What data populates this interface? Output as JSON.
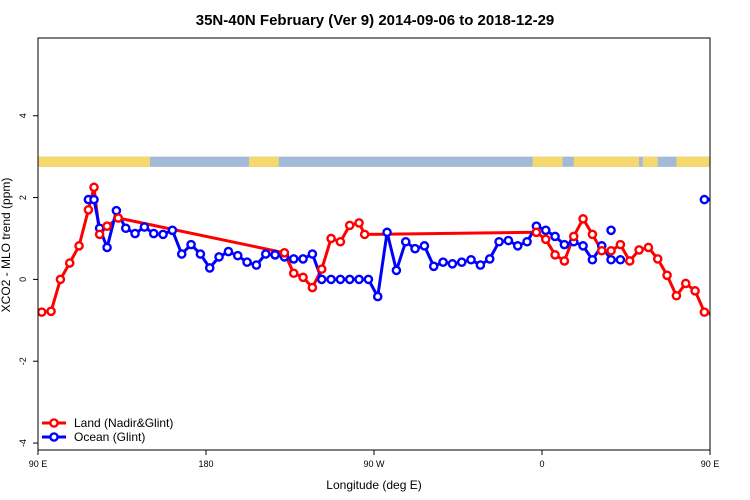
{
  "chart_data": {
    "type": "line",
    "title": "35N-40N February (Ver 9)   2014-09-06 to 2018-12-29",
    "xlabel": "Longitude (deg E)",
    "ylabel": "XCO2 - MLO trend (ppm)",
    "xlim": [
      90,
      450
    ],
    "ylim": [
      -4,
      6
    ],
    "x_ticks": [
      {
        "value": 90,
        "label": "90 E"
      },
      {
        "value": 180,
        "label": "180"
      },
      {
        "value": 270,
        "label": "90 W"
      },
      {
        "value": 360,
        "label": "0"
      },
      {
        "value": 450,
        "label": "90 E"
      },
      {
        "value": 540,
        "label": "180"
      }
    ],
    "y_ticks": [
      {
        "value": -4,
        "label": "-4"
      },
      {
        "value": -2,
        "label": "-2"
      },
      {
        "value": 0,
        "label": "0"
      },
      {
        "value": 2,
        "label": "2"
      },
      {
        "value": 4,
        "label": "4"
      }
    ],
    "series": [
      {
        "name": "Land (Nadir&Glint)",
        "color": "#ff0000",
        "x": [
          92,
          97,
          102,
          107,
          112,
          117,
          120,
          123,
          127,
          133,
          222,
          227,
          232,
          237,
          242,
          247,
          252,
          257,
          262,
          265,
          357,
          362,
          367,
          372,
          377,
          382,
          387,
          392,
          397,
          402,
          407,
          412,
          417,
          422,
          427,
          432,
          437,
          442,
          447,
          452,
          457,
          462,
          467,
          472,
          477,
          482,
          487,
          492
        ],
        "y": [
          -0.8,
          -0.78,
          0.0,
          0.4,
          0.82,
          1.7,
          2.25,
          1.1,
          1.3,
          1.5,
          0.65,
          0.15,
          0.05,
          -0.2,
          0.25,
          1.0,
          0.92,
          1.32,
          1.38,
          1.1,
          1.15,
          0.98,
          0.6,
          0.45,
          1.05,
          1.48,
          1.1,
          0.7,
          0.7,
          0.85,
          0.45,
          0.72,
          0.78,
          0.5,
          0.1,
          -0.4,
          -0.1,
          -0.28,
          -0.8,
          -0.85,
          -0.8,
          0.0,
          0.4,
          0.82,
          1.7,
          2.25,
          1.1,
          1.5
        ]
      },
      {
        "name": "Ocean (Glint)",
        "color": "#0000ff",
        "segments": [
          {
            "x": [
              117,
              120,
              123,
              127,
              132,
              137,
              142,
              147,
              152,
              157,
              162,
              167,
              172,
              177,
              182,
              187,
              192,
              197,
              202,
              207,
              212,
              217,
              222
            ],
            "y": [
              1.95,
              1.95,
              1.25,
              0.78,
              1.68,
              1.25,
              1.12,
              1.28,
              1.12,
              1.1,
              1.2,
              0.62,
              0.85,
              0.62,
              0.28,
              0.55,
              0.68,
              0.58,
              0.42,
              0.35,
              0.62,
              0.6,
              0.6
            ]
          },
          {
            "x": [
              217,
              222,
              227,
              232,
              237,
              242,
              247,
              252,
              257,
              262,
              267,
              272,
              277,
              282,
              287,
              292,
              297,
              302,
              307,
              312,
              317,
              322,
              327,
              332,
              337,
              342,
              347,
              352,
              357,
              362,
              367,
              372,
              377,
              382,
              387,
              392,
              397,
              402
            ],
            "y": [
              0.6,
              0.55,
              0.5,
              0.5,
              0.62,
              0.0,
              0.0,
              0.0,
              0.0,
              0.0,
              0.0,
              -0.42,
              1.15,
              0.22,
              0.92,
              0.75,
              0.82,
              0.32,
              0.42,
              0.38,
              0.42,
              0.48,
              0.35,
              0.5,
              0.92,
              0.95,
              0.82,
              0.92,
              1.3,
              1.2,
              1.05,
              0.85,
              0.92,
              0.82,
              0.48,
              0.82,
              0.48,
              0.48
            ]
          },
          {
            "x": [
              447,
              452,
              457,
              462,
              467,
              472,
              477,
              482,
              487,
              492,
              497,
              502,
              507
            ],
            "y": [
              1.95,
              1.95,
              1.25,
              0.78,
              1.68,
              1.25,
              1.12,
              1.28,
              1.12,
              1.1,
              1.2,
              0.62,
              0.85
            ]
          }
        ]
      },
      {
        "name": "Ocean (Glint) outlier",
        "color": "#0000ff",
        "x": [
          397
        ],
        "y": [
          1.2
        ]
      }
    ],
    "legend_position": "bottom-left",
    "land_mask_band": {
      "y_range": [
        2.75,
        3.0
      ],
      "ocean_color": "#a3b9d8",
      "land_color": "#f5d86e",
      "land_intervals_lon": [
        [
          90,
          150
        ],
        [
          203,
          219
        ],
        [
          355,
          371
        ],
        [
          377,
          412
        ],
        [
          414,
          422
        ],
        [
          432,
          450
        ],
        [
          449,
          490
        ]
      ]
    }
  },
  "legend": {
    "land_label": "Land (Nadir&Glint)",
    "ocean_label": "Ocean (Glint)"
  }
}
